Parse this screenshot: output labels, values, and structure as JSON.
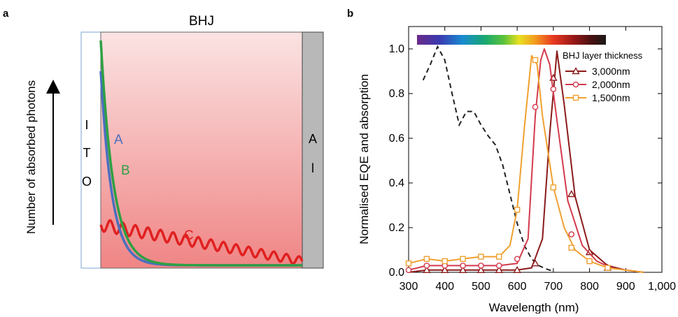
{
  "panel_a": {
    "panel_letter": "a",
    "top_label": "BHJ",
    "y_arrow_label": "Number of absorbed photons",
    "left_electrode_letters": [
      "I",
      "T",
      "O"
    ],
    "right_electrode_letters": [
      "A",
      "l"
    ],
    "curve_labels": {
      "A": "A",
      "B": "B",
      "C": "C"
    },
    "colors": {
      "A": "#4a6fc0",
      "B": "#2ea043",
      "C": "#e02020",
      "bhj_fill_light": "#fbe3e3",
      "bhj_fill_dark": "#f08585",
      "al_fill": "#b8b8b8"
    }
  },
  "chart_data": {
    "type": "line",
    "panel_letter": "b",
    "xlabel": "Wavelength (nm)",
    "ylabel": "Normalised EQE and absorption",
    "xlim": [
      300,
      1000
    ],
    "ylim": [
      0,
      1.1
    ],
    "xticks": [
      "300",
      "400",
      "500",
      "600",
      "700",
      "800",
      "900",
      "1,000"
    ],
    "yticks": [
      "0.0",
      "0.2",
      "0.4",
      "0.6",
      "0.8",
      "1.0"
    ],
    "legend_title": "BHJ layer thickness",
    "legend_position": "top-right",
    "absorption": {
      "style": "dashed",
      "color": "#222222",
      "x": [
        340,
        360,
        380,
        400,
        420,
        440,
        460,
        480,
        500,
        520,
        540,
        560,
        580,
        600,
        620,
        640,
        660,
        680,
        700
      ],
      "y": [
        0.86,
        0.93,
        1.01,
        0.95,
        0.8,
        0.66,
        0.72,
        0.72,
        0.66,
        0.61,
        0.57,
        0.48,
        0.35,
        0.22,
        0.12,
        0.06,
        0.03,
        0.015,
        0.005
      ]
    },
    "series": [
      {
        "name": "3,000nm",
        "color": "#8b1a1a",
        "marker": "triangle",
        "x": [
          300,
          350,
          400,
          450,
          500,
          550,
          600,
          640,
          670,
          690,
          710,
          730,
          760,
          800,
          850,
          900,
          950
        ],
        "y": [
          0.0,
          0.01,
          0.01,
          0.01,
          0.01,
          0.01,
          0.01,
          0.02,
          0.15,
          0.62,
          0.99,
          0.75,
          0.34,
          0.1,
          0.03,
          0.01,
          0.0
        ],
        "marker_x": [
          350,
          400,
          450,
          500,
          550,
          600,
          650,
          700,
          750,
          800,
          850
        ],
        "marker_y": [
          0.01,
          0.01,
          0.01,
          0.01,
          0.01,
          0.01,
          0.04,
          0.87,
          0.35,
          0.09,
          0.02
        ]
      },
      {
        "name": "2,000nm",
        "color": "#d43a4c",
        "marker": "circle",
        "x": [
          300,
          350,
          400,
          450,
          500,
          550,
          600,
          630,
          650,
          665,
          675,
          690,
          710,
          740,
          780,
          820,
          860,
          900,
          950
        ],
        "y": [
          0.01,
          0.03,
          0.03,
          0.03,
          0.03,
          0.03,
          0.04,
          0.15,
          0.7,
          0.95,
          1.0,
          0.93,
          0.68,
          0.32,
          0.12,
          0.05,
          0.02,
          0.01,
          0.0
        ],
        "marker_x": [
          300,
          350,
          400,
          450,
          500,
          550,
          600,
          650,
          700,
          750,
          800
        ],
        "marker_y": [
          0.01,
          0.03,
          0.03,
          0.03,
          0.03,
          0.03,
          0.06,
          0.74,
          0.82,
          0.17,
          0.05
        ]
      },
      {
        "name": "1,500nm",
        "color": "#f0a030",
        "marker": "square",
        "x": [
          300,
          350,
          400,
          450,
          500,
          550,
          580,
          600,
          620,
          640,
          655,
          670,
          700,
          730,
          760,
          800,
          850,
          900,
          950
        ],
        "y": [
          0.04,
          0.06,
          0.05,
          0.06,
          0.07,
          0.07,
          0.12,
          0.28,
          0.65,
          0.97,
          0.93,
          0.7,
          0.38,
          0.2,
          0.1,
          0.05,
          0.02,
          0.01,
          0.0
        ],
        "marker_x": [
          300,
          350,
          400,
          450,
          500,
          550,
          600,
          650,
          700,
          750,
          800,
          850
        ],
        "marker_y": [
          0.04,
          0.06,
          0.05,
          0.06,
          0.07,
          0.07,
          0.28,
          0.95,
          0.38,
          0.11,
          0.05,
          0.02
        ]
      }
    ]
  }
}
